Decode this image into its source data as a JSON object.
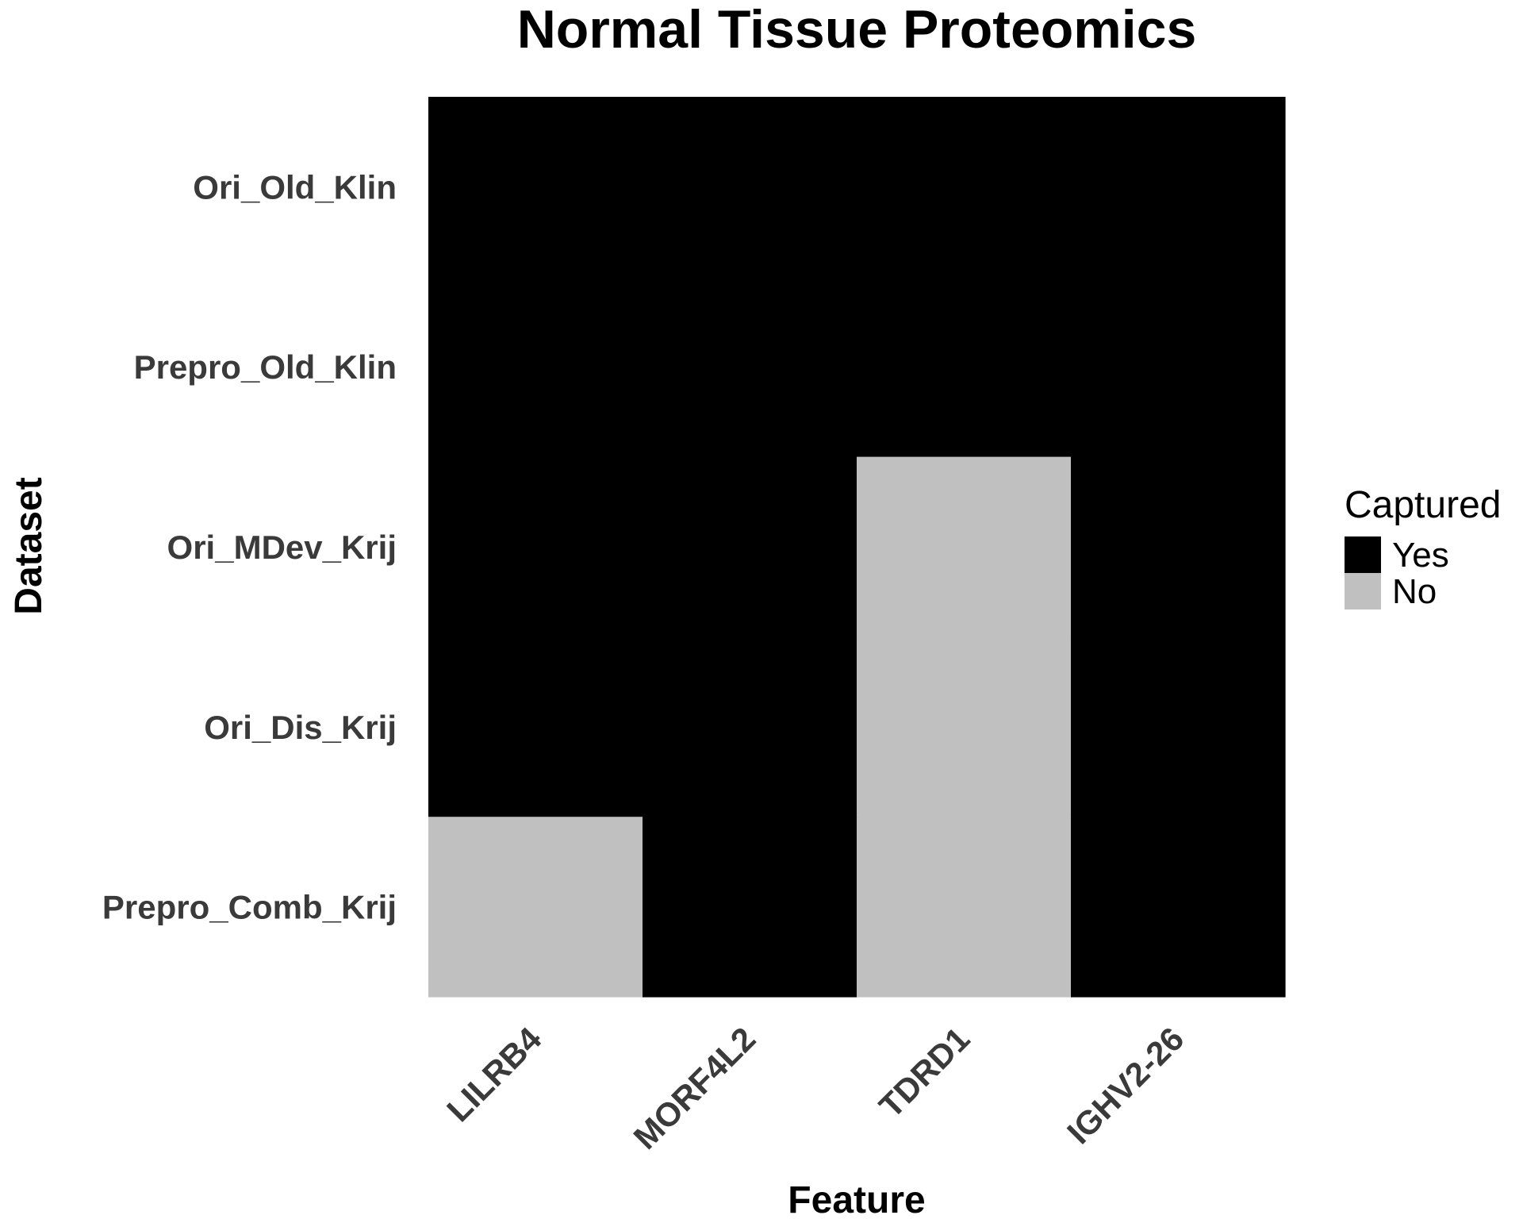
{
  "chart_data": {
    "type": "heatmap",
    "title": "Normal Tissue Proteomics",
    "xlabel": "Feature",
    "ylabel": "Dataset",
    "x": [
      "LILRB4",
      "MORF4L2",
      "TDRD1",
      "IGHV2-26"
    ],
    "y": [
      "Ori_Old_Klin",
      "Prepro_Old_Klin",
      "Ori_MDev_Krij",
      "Ori_Dis_Krij",
      "Prepro_Comb_Krij"
    ],
    "values": [
      [
        "Yes",
        "Yes",
        "Yes",
        "Yes"
      ],
      [
        "Yes",
        "Yes",
        "Yes",
        "Yes"
      ],
      [
        "Yes",
        "Yes",
        "No",
        "Yes"
      ],
      [
        "Yes",
        "Yes",
        "No",
        "Yes"
      ],
      [
        "No",
        "Yes",
        "No",
        "Yes"
      ]
    ],
    "legend": {
      "title": "Captured",
      "placement": "right",
      "entries": [
        {
          "label": "Yes",
          "color": "#000000"
        },
        {
          "label": "No",
          "color": "#c0c0c0"
        }
      ]
    },
    "grid": false
  }
}
